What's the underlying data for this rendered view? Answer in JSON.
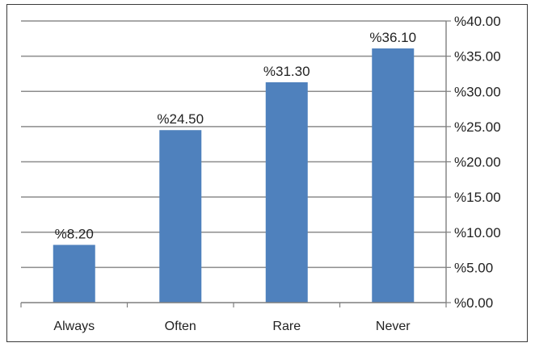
{
  "chart_data": {
    "type": "bar",
    "title": "",
    "xlabel": "",
    "ylabel": "",
    "categories": [
      "Always",
      "Often",
      "Rare",
      "Never"
    ],
    "values": [
      8.2,
      24.5,
      31.3,
      36.1
    ],
    "data_labels": [
      "%8.20",
      "%24.50",
      "%31.30",
      "%36.10"
    ],
    "ylim": [
      0,
      40
    ],
    "yticks": [
      0,
      5,
      10,
      15,
      20,
      25,
      30,
      35,
      40
    ],
    "ytick_labels": [
      "%0.00",
      "%5.00",
      "%10.00",
      "%15.00",
      "%20.00",
      "%25.00",
      "%30.00",
      "%35.00",
      "%40.00"
    ],
    "y_axis_side": "right",
    "grid": true,
    "legend": "none",
    "bar_color": "#4f81bd",
    "grid_color": "#8c8c8c"
  }
}
